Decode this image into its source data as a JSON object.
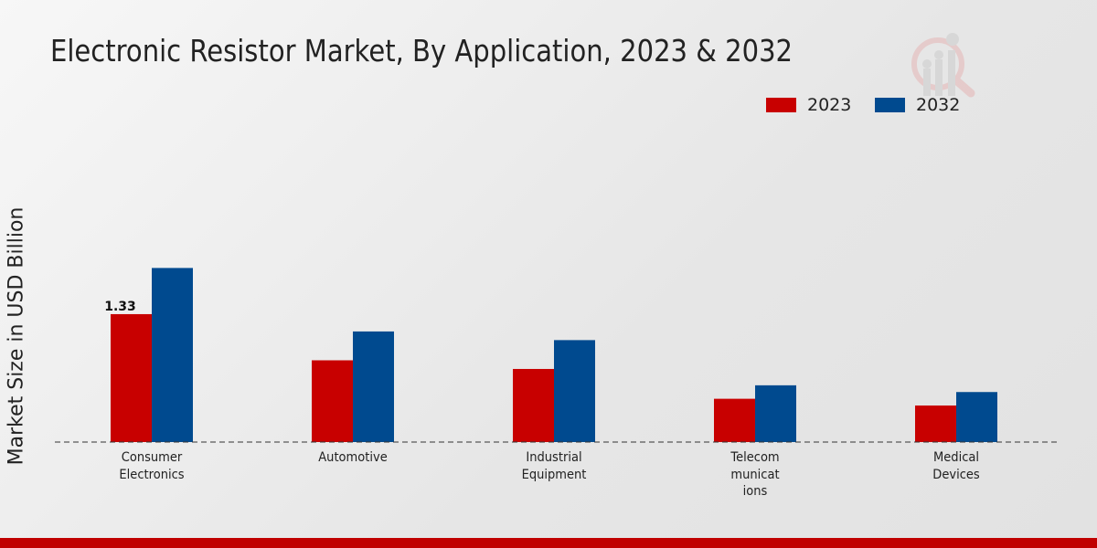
{
  "chart_data": {
    "type": "bar",
    "title": "Electronic Resistor Market, By Application, 2023 & 2032",
    "xlabel": "",
    "ylabel": "Market Size in USD Billion",
    "categories": [
      "Consumer Electronics",
      "Automotive",
      "Industrial Equipment",
      "Telecommunications",
      "Medical Devices"
    ],
    "category_display": [
      "Consumer\nElectronics",
      "Automotive",
      "Industrial\nEquipment",
      "Telecom\nmunicat\nions",
      "Medical\nDevices"
    ],
    "series": [
      {
        "name": "2023",
        "color": "#c80000",
        "values": [
          1.33,
          0.85,
          0.76,
          0.45,
          0.38
        ]
      },
      {
        "name": "2032",
        "color": "#004a8f",
        "values": [
          1.81,
          1.15,
          1.06,
          0.59,
          0.52
        ]
      }
    ],
    "data_labels": [
      {
        "series": "2023",
        "category": "Consumer Electronics",
        "text": "1.33"
      }
    ],
    "ylim": [
      0,
      4.0
    ],
    "grid": false,
    "legend_position": "top-right"
  }
}
